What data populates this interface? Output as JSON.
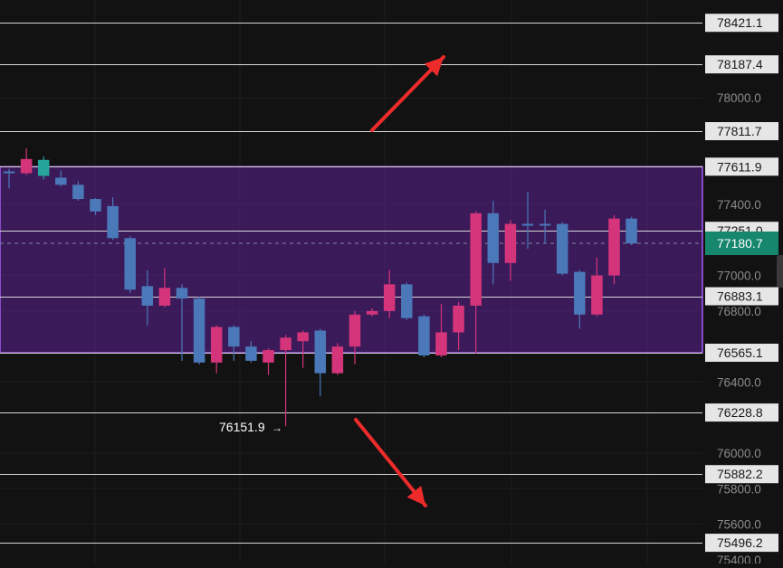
{
  "chart_data": {
    "type": "candlestick",
    "ylim": [
      75400,
      78520
    ],
    "y_axis_ticks": [
      "78000.0",
      "77400.0",
      "77000.0",
      "76800.0",
      "76400.0",
      "76000.0",
      "75800.0",
      "75600.0",
      "75400.0"
    ],
    "horizontal_levels": [
      {
        "label": "78421.1",
        "value": 78421.1
      },
      {
        "label": "78187.4",
        "value": 78187.4
      },
      {
        "label": "77811.7",
        "value": 77811.7
      },
      {
        "label": "77611.9",
        "value": 77611.9
      },
      {
        "label": "77251.0",
        "value": 77251.0
      },
      {
        "label": "76883.1",
        "value": 76883.1
      },
      {
        "label": "76565.1",
        "value": 76565.1
      },
      {
        "label": "76228.8",
        "value": 76228.8
      },
      {
        "label": "75882.2",
        "value": 75882.2
      },
      {
        "label": "75496.2",
        "value": 75496.2
      }
    ],
    "range_zone": {
      "top": 77611.9,
      "bottom": 76565.1
    },
    "current_price": {
      "label": "77180.7",
      "value": 77180.7
    },
    "low_annotation": {
      "label": "76151.9",
      "arrow": "→",
      "value": 76151.9
    },
    "candles": [
      {
        "o": 77575,
        "c": 77585,
        "h": 77600,
        "l": 77490,
        "color": "#4a78b8"
      },
      {
        "o": 77655,
        "c": 77575,
        "h": 77715,
        "l": 77565,
        "color": "#d4357a"
      },
      {
        "o": 77560,
        "c": 77650,
        "h": 77670,
        "l": 77540,
        "color": "#26a69a"
      },
      {
        "o": 77550,
        "c": 77510,
        "h": 77590,
        "l": 77500,
        "color": "#4a78b8"
      },
      {
        "o": 77510,
        "c": 77430,
        "h": 77530,
        "l": 77420,
        "color": "#4a78b8"
      },
      {
        "o": 77430,
        "c": 77360,
        "h": 77435,
        "l": 77340,
        "color": "#4a78b8"
      },
      {
        "o": 77390,
        "c": 77210,
        "h": 77440,
        "l": 77200,
        "color": "#4a78b8"
      },
      {
        "o": 77210,
        "c": 76920,
        "h": 77220,
        "l": 76900,
        "color": "#4a78b8"
      },
      {
        "o": 76940,
        "c": 76830,
        "h": 77030,
        "l": 76720,
        "color": "#4a78b8"
      },
      {
        "o": 76830,
        "c": 76930,
        "h": 77040,
        "l": 76820,
        "color": "#d4357a"
      },
      {
        "o": 76930,
        "c": 76870,
        "h": 76950,
        "l": 76520,
        "color": "#4a78b8"
      },
      {
        "o": 76870,
        "c": 76510,
        "h": 76880,
        "l": 76500,
        "color": "#4a78b8"
      },
      {
        "o": 76510,
        "c": 76710,
        "h": 76720,
        "l": 76450,
        "color": "#d4357a"
      },
      {
        "o": 76710,
        "c": 76600,
        "h": 76720,
        "l": 76520,
        "color": "#4a78b8"
      },
      {
        "o": 76600,
        "c": 76520,
        "h": 76630,
        "l": 76510,
        "color": "#4a78b8"
      },
      {
        "o": 76510,
        "c": 76580,
        "h": 76590,
        "l": 76440,
        "color": "#d4357a"
      },
      {
        "o": 76580,
        "c": 76650,
        "h": 76665,
        "l": 76151.9,
        "color": "#d4357a"
      },
      {
        "o": 76630,
        "c": 76680,
        "h": 76690,
        "l": 76480,
        "color": "#d4357a"
      },
      {
        "o": 76690,
        "c": 76450,
        "h": 76700,
        "l": 76320,
        "color": "#4a78b8"
      },
      {
        "o": 76450,
        "c": 76600,
        "h": 76620,
        "l": 76440,
        "color": "#d4357a"
      },
      {
        "o": 76600,
        "c": 76780,
        "h": 76800,
        "l": 76500,
        "color": "#d4357a"
      },
      {
        "o": 76780,
        "c": 76800,
        "h": 76815,
        "l": 76770,
        "color": "#d4357a"
      },
      {
        "o": 76800,
        "c": 76950,
        "h": 77030,
        "l": 76760,
        "color": "#d4357a"
      },
      {
        "o": 76950,
        "c": 76760,
        "h": 76960,
        "l": 76750,
        "color": "#4a78b8"
      },
      {
        "o": 76770,
        "c": 76550,
        "h": 76780,
        "l": 76540,
        "color": "#4a78b8"
      },
      {
        "o": 76550,
        "c": 76680,
        "h": 76840,
        "l": 76540,
        "color": "#d4357a"
      },
      {
        "o": 76680,
        "c": 76830,
        "h": 76850,
        "l": 76580,
        "color": "#d4357a"
      },
      {
        "o": 76830,
        "c": 77350,
        "h": 77360,
        "l": 76560,
        "color": "#d4357a"
      },
      {
        "o": 77350,
        "c": 77070,
        "h": 77420,
        "l": 76950,
        "color": "#4a78b8"
      },
      {
        "o": 77070,
        "c": 77290,
        "h": 77310,
        "l": 76970,
        "color": "#d4357a"
      },
      {
        "o": 77290,
        "c": 77290,
        "h": 77470,
        "l": 77150,
        "color": "#4a78b8"
      },
      {
        "o": 77290,
        "c": 77290,
        "h": 77370,
        "l": 77180,
        "color": "#4a78b8"
      },
      {
        "o": 77290,
        "c": 77010,
        "h": 77300,
        "l": 77000,
        "color": "#4a78b8"
      },
      {
        "o": 77020,
        "c": 76780,
        "h": 77030,
        "l": 76700,
        "color": "#4a78b8"
      },
      {
        "o": 76780,
        "c": 77000,
        "h": 77100,
        "l": 76770,
        "color": "#d4357a"
      },
      {
        "o": 77000,
        "c": 77320,
        "h": 77340,
        "l": 76950,
        "color": "#d4357a"
      },
      {
        "o": 77320,
        "c": 77180,
        "h": 77330,
        "l": 77170,
        "color": "#4a78b8"
      }
    ]
  }
}
